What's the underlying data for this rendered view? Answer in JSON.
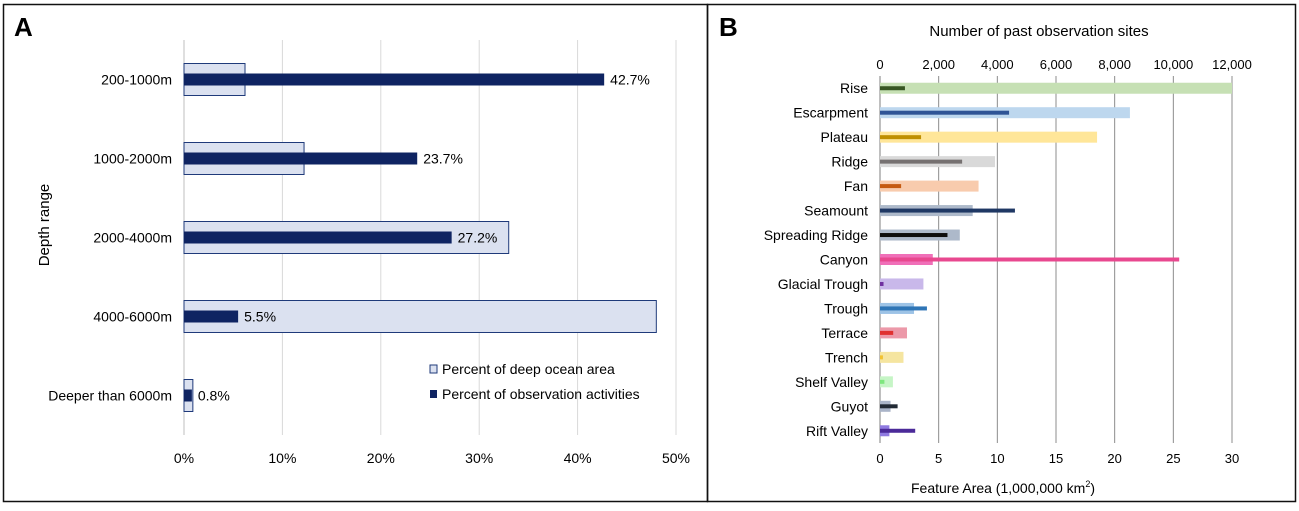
{
  "chart_data": [
    {
      "panel": "A",
      "type": "bar",
      "orientation": "horizontal",
      "title": "",
      "xlabel": "",
      "ylabel": "Depth range",
      "xlim": [
        0,
        50
      ],
      "x_ticks": [
        0,
        10,
        20,
        30,
        40,
        50
      ],
      "x_tick_labels": [
        "0%",
        "10%",
        "20%",
        "30%",
        "40%",
        "50%"
      ],
      "categories": [
        "200-1000m",
        "1000-2000m",
        "2000-4000m",
        "4000-6000m",
        "Deeper than 6000m"
      ],
      "series": [
        {
          "name": "Percent of deep ocean area",
          "values": [
            6.2,
            12.2,
            33.0,
            48.0,
            0.9
          ],
          "color": "#dbe1f0",
          "edge": "#1f3a7a"
        },
        {
          "name": "Percent of observation activities",
          "values": [
            42.7,
            23.7,
            27.2,
            5.5,
            0.8
          ],
          "color": "#0f2462"
        }
      ],
      "data_labels": [
        "42.7%",
        "23.7%",
        "27.2%",
        "5.5%",
        "0.8%"
      ],
      "legend_position": "bottom-right",
      "grid": "vertical"
    },
    {
      "panel": "B",
      "type": "bar",
      "orientation": "horizontal",
      "title": "Number of past observation sites",
      "xlabel_prefix": "Feature Area (1,000,000 km",
      "xlabel_sup": "2",
      "xlabel_suffix": ")",
      "xlim": [
        0,
        30
      ],
      "x_ticks": [
        0,
        5,
        10,
        15,
        20,
        25,
        30
      ],
      "x_tick_labels": [
        "0",
        "5",
        "10",
        "15",
        "20",
        "25",
        "30"
      ],
      "x2lim": [
        0,
        12000
      ],
      "x2_ticks": [
        0,
        2000,
        4000,
        6000,
        8000,
        10000,
        12000
      ],
      "x2_tick_labels": [
        "0",
        "2,000",
        "4,000",
        "6,000",
        "8,000",
        "10,000",
        "12,000"
      ],
      "categories": [
        "Rise",
        "Escarpment",
        "Plateau",
        "Ridge",
        "Fan",
        "Seamount",
        "Spreading Ridge",
        "Canyon",
        "Glacial Trough",
        "Trough",
        "Terrace",
        "Trench",
        "Shelf Valley",
        "Guyot",
        "Rift Valley"
      ],
      "series": [
        {
          "name": "Feature Area",
          "axis": "bottom",
          "values": [
            30.0,
            21.3,
            18.5,
            9.8,
            8.4,
            7.9,
            6.8,
            4.5,
            3.7,
            2.9,
            2.3,
            2.0,
            1.1,
            0.9,
            0.8
          ],
          "colors": [
            "#c6e0b4",
            "#bdd7ee",
            "#ffe699",
            "#d9d9d9",
            "#f8cbad",
            "#adb9ca",
            "#adb9ca",
            "#f06fb8",
            "#c9b8ea",
            "#9dc3e6",
            "#ec99a9",
            "#f5e5a0",
            "#c6f5c6",
            "#aab4c8",
            "#8f7ae0"
          ]
        },
        {
          "name": "Number of past observation sites",
          "axis": "top",
          "values": [
            850,
            4400,
            1400,
            2800,
            720,
            4600,
            2300,
            10200,
            120,
            1600,
            450,
            100,
            150,
            600,
            1200
          ],
          "colors": [
            "#375623",
            "#2f5496",
            "#bf8f00",
            "#767171",
            "#c55a11",
            "#1f3864",
            "#0d0d0d",
            "#e8488f",
            "#7030a0",
            "#2e75b6",
            "#e03030",
            "#f2c232",
            "#7ee77e",
            "#222a35",
            "#4b2a99"
          ]
        }
      ],
      "grid": "vertical"
    }
  ]
}
